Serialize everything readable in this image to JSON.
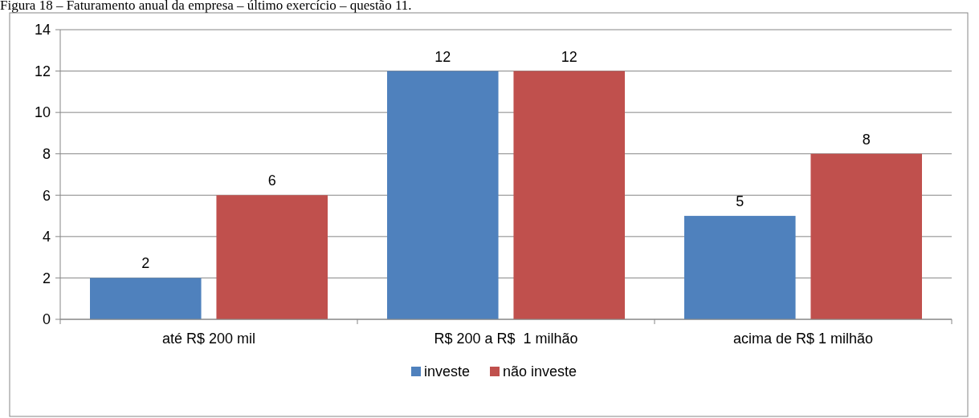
{
  "chart_data": {
    "type": "bar",
    "title": "Figura 18 – Faturamento anual da empresa – último exercício – questão 11.",
    "categories": [
      "até R$ 200 mil",
      "R$ 200 a R$  1 milhão",
      "acima de R$ 1 milhão"
    ],
    "series": [
      {
        "name": "investe",
        "color": "#4f81bd",
        "values": [
          2,
          12,
          5
        ]
      },
      {
        "name": "não investe",
        "color": "#c0504d",
        "values": [
          6,
          12,
          8
        ]
      }
    ],
    "ylim": [
      0,
      14
    ],
    "yticks": [
      0,
      2,
      4,
      6,
      8,
      10,
      12,
      14
    ],
    "grid": "y",
    "legend": "bottom",
    "data_labels": true
  }
}
